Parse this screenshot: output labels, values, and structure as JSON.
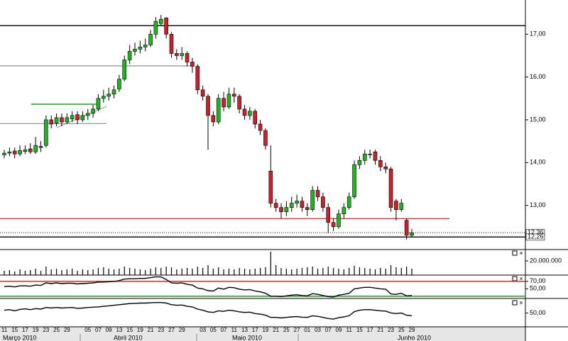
{
  "chart_data": [
    {
      "type": "candlestick",
      "categories": [
        "11",
        null,
        "15",
        null,
        "17",
        null,
        "19",
        null,
        "23",
        null,
        "25",
        null,
        "29",
        null,
        null,
        null,
        "05",
        null,
        "07",
        null,
        "09",
        null,
        "13",
        null,
        "15",
        null,
        "19",
        null,
        "21",
        null,
        "23",
        null,
        "27",
        null,
        "29",
        null,
        null,
        null,
        "03",
        null,
        "05",
        null,
        "07",
        null,
        "11",
        null,
        "13",
        null,
        "17",
        null,
        "19",
        null,
        "21",
        null,
        "25",
        null,
        "27",
        null,
        "01",
        null,
        "03",
        null,
        "07",
        null,
        "09",
        null,
        "11",
        null,
        "15",
        null,
        "17",
        null,
        "21",
        null,
        "23",
        null,
        "25",
        null,
        "29"
      ],
      "months": [
        "Março 2010",
        "Abril 2010",
        "Maio 2010",
        "Junho 2010"
      ],
      "open": [
        14.18,
        14.22,
        14.27,
        14.2,
        14.26,
        14.32,
        14.25,
        14.38,
        14.4,
        15.0,
        14.92,
        15.05,
        14.95,
        15.02,
        15.12,
        15.0,
        15.1,
        15.15,
        15.25,
        15.5,
        15.55,
        15.6,
        15.72,
        15.95,
        16.4,
        16.6,
        16.65,
        16.7,
        16.75,
        17.0,
        17.25,
        17.38,
        17.0,
        16.55,
        16.5,
        16.55,
        16.35,
        16.25,
        15.7,
        15.55,
        15.1,
        14.95,
        15.5,
        15.3,
        15.6,
        15.55,
        15.25,
        15.1,
        15.2,
        14.9,
        14.75,
        13.8,
        13.05,
        12.95,
        12.85,
        12.95,
        13.05,
        13.1,
        12.95,
        12.9,
        13.35,
        13.2,
        12.95,
        12.6,
        12.5,
        12.8,
        12.95,
        13.2,
        13.95,
        14.05,
        14.2,
        14.25,
        14.05,
        13.9,
        13.85,
        13.1,
        12.9,
        12.65,
        12.3
      ],
      "high": [
        14.3,
        14.35,
        14.35,
        14.4,
        14.4,
        14.45,
        14.6,
        14.5,
        15.1,
        15.1,
        15.15,
        15.15,
        15.15,
        15.2,
        15.2,
        15.2,
        15.25,
        15.35,
        15.6,
        15.7,
        15.75,
        15.8,
        16.05,
        16.5,
        16.75,
        16.8,
        16.85,
        16.9,
        17.1,
        17.4,
        17.45,
        17.4,
        17.05,
        16.65,
        16.7,
        16.6,
        16.45,
        16.3,
        15.8,
        15.6,
        15.2,
        15.6,
        15.65,
        15.75,
        15.75,
        15.6,
        15.35,
        15.3,
        15.25,
        15.0,
        14.8,
        14.4,
        13.15,
        13.05,
        13.1,
        13.2,
        13.25,
        13.2,
        13.05,
        13.45,
        13.45,
        13.3,
        13.05,
        12.7,
        12.9,
        13.05,
        13.3,
        14.05,
        14.15,
        14.3,
        14.3,
        14.3,
        14.15,
        14.0,
        13.9,
        13.15,
        13.15,
        12.7,
        12.45
      ],
      "low": [
        14.1,
        14.15,
        14.1,
        14.15,
        14.2,
        14.2,
        14.2,
        14.25,
        14.35,
        14.8,
        14.85,
        14.85,
        14.9,
        14.95,
        14.9,
        14.95,
        15.0,
        15.05,
        15.2,
        15.4,
        15.45,
        15.5,
        15.65,
        15.9,
        16.3,
        16.5,
        16.55,
        16.6,
        16.7,
        16.9,
        17.2,
        16.9,
        16.45,
        16.4,
        16.4,
        16.25,
        16.1,
        15.6,
        15.45,
        14.3,
        14.85,
        14.9,
        15.2,
        15.25,
        15.4,
        15.15,
        15.0,
        15.0,
        14.8,
        14.65,
        14.3,
        12.95,
        12.85,
        12.7,
        12.75,
        12.85,
        12.95,
        12.85,
        12.75,
        12.85,
        13.1,
        12.85,
        12.35,
        12.4,
        12.45,
        12.7,
        12.9,
        13.15,
        13.85,
        13.95,
        14.1,
        13.95,
        13.8,
        13.75,
        12.85,
        12.65,
        12.85,
        12.2,
        12.25
      ],
      "close": [
        14.22,
        14.25,
        14.2,
        14.28,
        14.3,
        14.25,
        14.4,
        14.35,
        15.0,
        14.9,
        15.05,
        14.95,
        15.05,
        15.1,
        15.0,
        15.1,
        15.15,
        15.25,
        15.5,
        15.55,
        15.6,
        15.7,
        15.95,
        16.4,
        16.6,
        16.65,
        16.7,
        16.75,
        17.0,
        17.3,
        17.35,
        17.0,
        16.55,
        16.5,
        16.55,
        16.35,
        16.25,
        15.7,
        15.55,
        15.1,
        14.95,
        15.5,
        15.3,
        15.6,
        15.55,
        15.25,
        15.1,
        15.2,
        14.9,
        14.75,
        14.4,
        13.05,
        12.95,
        12.85,
        12.95,
        13.05,
        13.1,
        12.95,
        12.9,
        13.35,
        13.2,
        12.95,
        12.6,
        12.5,
        12.8,
        12.95,
        13.2,
        13.95,
        14.05,
        14.2,
        14.2,
        14.05,
        13.9,
        13.85,
        12.95,
        12.9,
        13.05,
        12.3,
        12.36
      ],
      "up_color": "#22b422",
      "down_color": "#c8232c",
      "ylim": [
        12.0,
        17.8
      ],
      "yticks": [
        {
          "value": 13,
          "label": "13,00"
        },
        {
          "value": 14,
          "label": "14,00"
        },
        {
          "value": 15,
          "label": "15,00"
        },
        {
          "value": 16,
          "label": "16,00"
        },
        {
          "value": 17,
          "label": "17,00"
        }
      ],
      "hlines": [
        {
          "value": 17.2,
          "color": "#000000"
        },
        {
          "value": 16.26,
          "color": "#9a9a9a"
        },
        {
          "value": 14.91,
          "color": "#9a9a9a"
        },
        {
          "value": 12.69,
          "color": "#e02828"
        }
      ],
      "price_labels": [
        {
          "value": 12.36,
          "label": "12,36"
        },
        {
          "value": 12.26,
          "label": "12,26"
        }
      ]
    },
    {
      "type": "bar",
      "values": [
        6000000,
        7000000,
        5000000,
        8000000,
        6000000,
        7000000,
        9000000,
        6000000,
        12000000,
        8000000,
        9000000,
        7000000,
        8000000,
        9000000,
        6000000,
        8000000,
        7000000,
        8000000,
        10000000,
        11000000,
        9000000,
        8000000,
        9000000,
        12000000,
        10000000,
        9000000,
        8000000,
        7000000,
        9000000,
        11000000,
        10000000,
        12000000,
        11000000,
        8000000,
        9000000,
        10000000,
        9000000,
        12000000,
        10000000,
        14000000,
        9000000,
        11000000,
        8000000,
        9000000,
        8000000,
        10000000,
        9000000,
        8000000,
        9000000,
        10000000,
        11000000,
        33000000,
        14000000,
        10000000,
        9000000,
        8000000,
        9000000,
        10000000,
        11000000,
        12000000,
        9000000,
        10000000,
        12000000,
        10000000,
        9000000,
        8000000,
        10000000,
        13000000,
        11000000,
        10000000,
        9000000,
        8000000,
        10000000,
        9000000,
        14000000,
        11000000,
        10000000,
        12000000,
        9000000
      ],
      "color": "#000000",
      "ylim": [
        0,
        35000000
      ],
      "yticks": [
        {
          "value": 20000000,
          "label": "20.000.000"
        }
      ]
    },
    {
      "type": "line",
      "values": [
        56,
        57,
        55,
        58,
        58,
        57,
        60,
        59,
        66,
        64,
        66,
        64,
        65,
        65,
        63,
        64,
        65,
        66,
        68,
        68,
        69,
        70,
        72,
        76,
        77,
        77,
        78,
        78,
        80,
        82,
        82,
        75,
        66,
        65,
        66,
        62,
        60,
        52,
        50,
        45,
        44,
        52,
        49,
        54,
        53,
        49,
        47,
        48,
        44,
        42,
        38,
        30,
        30,
        29,
        31,
        33,
        34,
        32,
        31,
        37,
        35,
        32,
        29,
        28,
        33,
        35,
        38,
        50,
        52,
        54,
        54,
        52,
        50,
        49,
        36,
        35,
        38,
        31,
        32
      ],
      "color": "#000000",
      "ylim": [
        24,
        85
      ],
      "yticks": [
        {
          "value": 70,
          "label": "70,00"
        },
        {
          "value": 50,
          "label": "50,00"
        }
      ],
      "hlines": [
        {
          "value": 70,
          "color": "#e02828"
        },
        {
          "value": 30,
          "color": "#1e9e1e"
        }
      ]
    },
    {
      "type": "line",
      "values": [
        60,
        62,
        58,
        63,
        65,
        62,
        66,
        64,
        70,
        68,
        70,
        68,
        69,
        70,
        67,
        68,
        70,
        71,
        72,
        74,
        76,
        78,
        80,
        82,
        84,
        85,
        86,
        86,
        87,
        88,
        88,
        86,
        80,
        78,
        79,
        74,
        72,
        64,
        60,
        54,
        52,
        58,
        56,
        60,
        58,
        54,
        52,
        53,
        48,
        46,
        42,
        34,
        34,
        32,
        34,
        36,
        37,
        35,
        34,
        40,
        38,
        34,
        30,
        28,
        33,
        36,
        40,
        55,
        60,
        62,
        62,
        60,
        58,
        57,
        50,
        48,
        50,
        42,
        40
      ],
      "color": "#000000",
      "ylim": [
        0,
        100
      ],
      "yticks": [
        {
          "value": 50,
          "label": "50,00"
        }
      ]
    }
  ]
}
